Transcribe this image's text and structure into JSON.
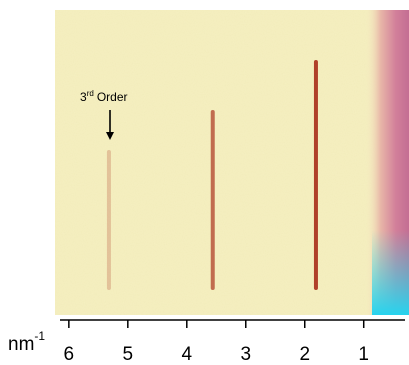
{
  "chart_data": {
    "type": "diffraction",
    "annotation": {
      "text": "3",
      "sup": "rd",
      "rest": "Order"
    },
    "xlabel": {
      "text": "nm",
      "sup": "-1"
    },
    "xlim": [
      6.15,
      0.3
    ],
    "xticks": [
      6,
      5,
      4,
      3,
      2,
      1
    ],
    "peaks": [
      5.32,
      3.56,
      1.81
    ],
    "color": "#b0402a"
  }
}
